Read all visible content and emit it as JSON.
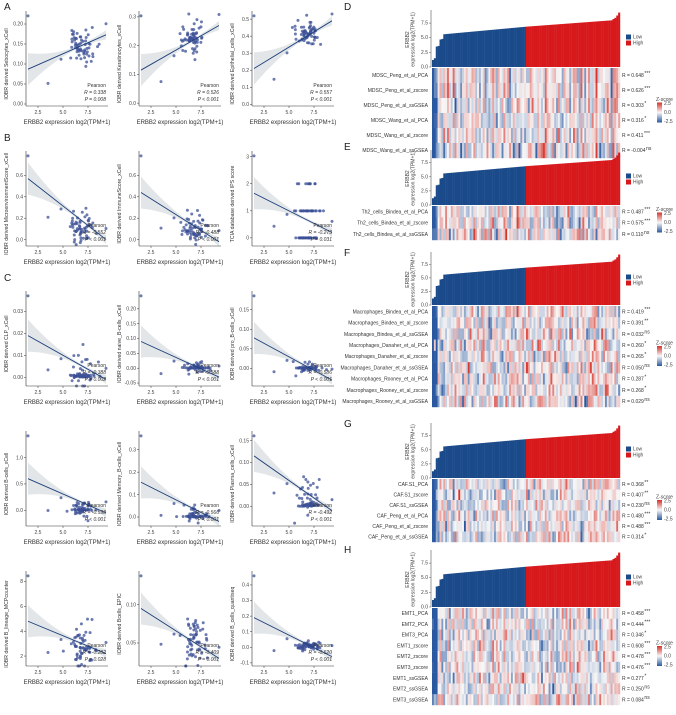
{
  "figure": {
    "panel_letters": [
      "A",
      "B",
      "C",
      "D",
      "E",
      "F",
      "G",
      "H"
    ]
  },
  "colors": {
    "point": "#3b4f96",
    "line": "#1c3f7a",
    "ci": "#d9dde0",
    "low": "#1a4a8a",
    "high": "#d7191c",
    "z_low": "#2a58a0",
    "z_mid": "#f7f7f7",
    "z_high": "#d6322a"
  },
  "chart_data": [
    {
      "panel": "A",
      "type": "scatter",
      "xlabel": "ERBB2 expression log2(TPM+1)",
      "ylabel": "IOBR derived Sebocytes_xCell",
      "xlim": [
        1.3,
        9.5
      ],
      "xticks": [
        "2.5",
        "5.0",
        "7.5"
      ],
      "ylim": [
        -0.005,
        0.225
      ],
      "yticks": [
        "0.00",
        "0.05",
        "0.10",
        "0.15",
        "0.20"
      ],
      "fit": [
        0.087,
        0.173
      ],
      "center": [
        6.8,
        0.145
      ],
      "spread": 0.025,
      "stats": {
        "method": "Pearson",
        "R": "R = 0.338",
        "P": "P = 0.008"
      }
    },
    {
      "panel": "A",
      "type": "scatter",
      "xlabel": "ERBB2 expression log2(TPM+1)",
      "ylabel": "IOBR derived Keratinocytes_xCell",
      "xlim": [
        1.3,
        9.5
      ],
      "xticks": [
        "2.5",
        "5.0",
        "7.5"
      ],
      "ylim": [
        -0.01,
        0.31
      ],
      "yticks": [
        "0.0",
        "0.1",
        "0.2",
        "0.3"
      ],
      "fit": [
        0.115,
        0.27
      ],
      "center": [
        6.8,
        0.23
      ],
      "spread": 0.025,
      "stats": {
        "method": "Pearson",
        "R": "R = 0.526",
        "P": "P < 0.001"
      }
    },
    {
      "panel": "A",
      "type": "scatter",
      "xlabel": "ERBB2 expression log2(TPM+1)",
      "ylabel": "IOBR derived Epithelial_cells_xCell",
      "xlim": [
        1.3,
        9.5
      ],
      "xticks": [
        "2.5",
        "5.0",
        "7.5"
      ],
      "ylim": [
        -0.01,
        0.53
      ],
      "yticks": [
        "0.0",
        "0.1",
        "0.2",
        "0.3",
        "0.4",
        "0.5"
      ],
      "fit": [
        0.21,
        0.49
      ],
      "center": [
        6.9,
        0.41
      ],
      "spread": 0.035,
      "stats": {
        "method": "Pearson",
        "R": "R = 0.557",
        "P": "P < 0.001"
      }
    },
    {
      "panel": "B",
      "type": "scatter",
      "xlabel": "ERBB2 expression log2(TPM+1)",
      "ylabel": "IOBR derived MicroenvironmentScore_xCell",
      "xlim": [
        1.3,
        9.5
      ],
      "xticks": [
        "2.5",
        "5.0",
        "7.5"
      ],
      "ylim": [
        -0.06,
        0.8
      ],
      "yticks": [
        "0.0",
        "0.2",
        "0.4",
        "0.6"
      ],
      "fit": [
        0.57,
        0.0
      ],
      "center": [
        6.8,
        0.12
      ],
      "spread": 0.08,
      "stats": {
        "method": "Pearson",
        "R": "R = -0.552",
        "P": "P < 0.001"
      }
    },
    {
      "panel": "B",
      "type": "scatter",
      "xlabel": "ERBB2 expression log2(TPM+1)",
      "ylabel": "IOBR derived ImmuneScore_xCell",
      "xlim": [
        1.3,
        9.5
      ],
      "xticks": [
        "2.5",
        "5.0",
        "7.5"
      ],
      "ylim": [
        -0.06,
        0.8
      ],
      "yticks": [
        "0.0",
        "0.2",
        "0.4",
        "0.6"
      ],
      "fit": [
        0.44,
        -0.02
      ],
      "center": [
        6.8,
        0.1
      ],
      "spread": 0.07,
      "stats": {
        "method": "Pearson",
        "R": "R = -0.488",
        "P": "P < 0.001"
      }
    },
    {
      "panel": "B",
      "type": "scatter",
      "xlabel": "ERBB2 expression log2(TPM+1)",
      "ylabel": "TCIA database derived IPS score",
      "xlim": [
        1.3,
        9.5
      ],
      "xticks": [
        "2.5",
        "5.0",
        "7.5"
      ],
      "ylim": [
        -0.3,
        3.1
      ],
      "yticks": [
        "0",
        "1",
        "2",
        "3"
      ],
      "fit": [
        1.65,
        0.2
      ],
      "center": [
        6.9,
        0.5
      ],
      "spread": 0.6,
      "discrete": true,
      "stats": {
        "method": "Pearson",
        "R": "R = -0.273",
        "P": "P = 0.031"
      }
    },
    {
      "panel": "C",
      "type": "scatter",
      "xlabel": "ERBB2 expression log2(TPM+1)",
      "ylabel": "IOBR derived CLP_xCell",
      "xlim": [
        1.3,
        9.5
      ],
      "xticks": [
        "2.5",
        "5.0",
        "7.5"
      ],
      "ylim": [
        -0.004,
        0.038
      ],
      "yticks": [
        "0.00",
        "0.01",
        "0.02",
        "0.03"
      ],
      "fit": [
        0.019,
        -0.001
      ],
      "center": [
        6.9,
        0.002
      ],
      "spread": 0.005,
      "floor": 0,
      "stats": {
        "method": "Pearson",
        "R": "R = -0.388",
        "P": "P = 0.002"
      }
    },
    {
      "panel": "C",
      "type": "scatter",
      "xlabel": "ERBB2 expression log2(TPM+1)",
      "ylabel": "IOBR derived naive_B-cells_xCell",
      "xlim": [
        1.3,
        9.5
      ],
      "xticks": [
        "2.5",
        "5.0",
        "7.5"
      ],
      "ylim": [
        -0.06,
        0.25
      ],
      "yticks": [
        "-0.05",
        "0.00",
        "0.05",
        "0.10",
        "0.15",
        "0.20"
      ],
      "fit": [
        0.09,
        -0.03
      ],
      "center": [
        6.9,
        0.003
      ],
      "spread": 0.01,
      "floor": 0,
      "stats": {
        "method": "Pearson",
        "R": "R = -0.588",
        "P": "P < 0.001"
      }
    },
    {
      "panel": "C",
      "type": "scatter",
      "xlabel": "ERBB2 expression log2(TPM+1)",
      "ylabel": "IOBR derived pro_B-cells_xCell",
      "xlim": [
        1.3,
        9.5
      ],
      "xticks": [
        "2.5",
        "5.0",
        "7.5"
      ],
      "ylim": [
        -0.045,
        0.19
      ],
      "yticks": [
        "0.00",
        "0.05",
        "0.10",
        "0.15"
      ],
      "fit": [
        0.078,
        -0.03
      ],
      "center": [
        6.9,
        0.003
      ],
      "spread": 0.008,
      "floor": 0,
      "stats": {
        "method": "Pearson",
        "R": "R = -0.586",
        "P": "P < 0.001"
      }
    },
    {
      "panel": "C",
      "type": "scatter",
      "xlabel": "ERBB2 expression log2(TPM+1)",
      "ylabel": "IOBR derived B-cells_xCell",
      "xlim": [
        1.3,
        9.5
      ],
      "xticks": [
        "2.5",
        "5.0",
        "7.5"
      ],
      "ylim": [
        -0.3,
        1.45
      ],
      "yticks": [
        "0.0",
        "0.5",
        "1.0"
      ],
      "fit": [
        0.6,
        -0.05
      ],
      "center": [
        6.9,
        0.03
      ],
      "spread": 0.07,
      "floor": 0,
      "stats": {
        "method": "Pearson",
        "R": "R = -0.598",
        "P": "P < 0.001"
      }
    },
    {
      "panel": "C",
      "type": "scatter",
      "xlabel": "ERBB2 expression log2(TPM+1)",
      "ylabel": "IOBR derived Memory_B-cells_xCell",
      "xlim": [
        1.3,
        9.5
      ],
      "xticks": [
        "2.5",
        "5.0",
        "7.5"
      ],
      "ylim": [
        -0.04,
        0.37
      ],
      "yticks": [
        "0.0",
        "0.1",
        "0.2",
        "0.3"
      ],
      "fit": [
        0.155,
        -0.02
      ],
      "center": [
        6.9,
        0.01
      ],
      "spread": 0.02,
      "floor": 0,
      "stats": {
        "method": "Pearson",
        "R": "R = -0.566",
        "P": "P < 0.001"
      }
    },
    {
      "panel": "C",
      "type": "scatter",
      "xlabel": "ERBB2 expression log2(TPM+1)",
      "ylabel": "IOBR derived Plasma_cells_xCell",
      "xlim": [
        1.3,
        9.5
      ],
      "xticks": [
        "2.5",
        "5.0",
        "7.5"
      ],
      "ylim": [
        -0.045,
        0.165
      ],
      "yticks": [
        "0.00",
        "0.05",
        "0.10",
        "0.15"
      ],
      "fit": [
        0.115,
        -0.01
      ],
      "center": [
        6.9,
        0.03
      ],
      "spread": 0.03,
      "floor": 0,
      "stats": {
        "method": "Pearson",
        "R": "R = -0.492",
        "P": "P < 0.001"
      }
    },
    {
      "panel": "C",
      "type": "scatter",
      "xlabel": "ERBB2 expression log2(TPM+1)",
      "ylabel": "IOBR derived B_lineage_MCPcounter",
      "xlim": [
        1.3,
        9.5
      ],
      "xticks": [
        "2.5",
        "5.0",
        "7.5"
      ],
      "ylim": [
        1.2,
        8.6
      ],
      "yticks": [
        "2",
        "4",
        "6",
        "8"
      ],
      "fit": [
        4.8,
        2.2
      ],
      "center": [
        6.9,
        3.0
      ],
      "spread": 1.0,
      "stats": {
        "method": "Pearson",
        "R": "R = -0.282",
        "P": "P = 0.028"
      }
    },
    {
      "panel": "C",
      "type": "scatter",
      "xlabel": "ERBB2 expression log2(TPM+1)",
      "ylabel": "IOBR derived Bcells_EPIC",
      "xlim": [
        1.3,
        9.5
      ],
      "xticks": [
        "2.5",
        "5.0",
        "7.5"
      ],
      "ylim": [
        0.02,
        0.14
      ],
      "yticks": [
        "0.05",
        "0.10"
      ],
      "fit": [
        0.095,
        0.03
      ],
      "center": [
        6.9,
        0.05
      ],
      "spread": 0.015,
      "stats": {
        "method": "Pearson",
        "R": "R = -0.409",
        "P": "P = 0.001"
      }
    },
    {
      "panel": "C",
      "type": "scatter",
      "xlabel": "ERBB2 expression log2(TPM+1)",
      "ylabel": "IOBR derived B_cells_quantiseq",
      "xlim": [
        1.3,
        9.5
      ],
      "xticks": [
        "2.5",
        "5.0",
        "7.5"
      ],
      "ylim": [
        -0.12,
        0.47
      ],
      "yticks": [
        "-0.1",
        "0.0",
        "0.1",
        "0.2",
        "0.3",
        "0.4"
      ],
      "fit": [
        0.19,
        -0.06
      ],
      "center": [
        6.9,
        0.01
      ],
      "spread": 0.012,
      "stats": {
        "method": "Pearson",
        "R": "R = -0.620",
        "P": "P < 0.001"
      }
    },
    {
      "panel": "D",
      "type": "heatmap",
      "bar_ylabel": [
        "ERBB2",
        "expression log2(TPM+1)"
      ],
      "bar_yticks": [
        "0.0",
        "2.5",
        "5.0",
        "7.5"
      ],
      "legend": [
        "Low",
        "High"
      ],
      "zscore": {
        "title": "Z-score",
        "ticks": [
          "2.5",
          "0.0",
          "-2.5"
        ]
      },
      "rows": [
        {
          "label": "MDSC_Peng_et_al_PCA",
          "R": "R = 0.648",
          "sig": "***",
          "r": 0.65
        },
        {
          "label": "MDSC_Peng_et_al_zscore",
          "R": "R = 0.626",
          "sig": "***",
          "r": 0.63
        },
        {
          "label": "MDSC_Peng_et_al_ssGSEA",
          "R": "R = 0.303",
          "sig": "*",
          "r": 0.3
        },
        {
          "label": "MDSC_Wang_et_al_PCA",
          "R": "R = 0.316",
          "sig": "*",
          "r": 0.32
        },
        {
          "label": "MDSC_Wang_et_al_zscore",
          "R": "R = 0.411",
          "sig": "***",
          "r": 0.41
        },
        {
          "label": "MDSC_Wang_et_al_ssGSEA",
          "R": "R = -0.004",
          "sig": "ns",
          "r": 0
        }
      ]
    },
    {
      "panel": "E",
      "type": "heatmap",
      "bar_ylabel": [
        "ERBB2",
        "expression log2(TPM+1)"
      ],
      "bar_yticks": [
        "0.0",
        "2.5",
        "5.0",
        "7.5"
      ],
      "legend": [
        "Low",
        "High"
      ],
      "zscore": {
        "title": "Z-score",
        "ticks": [
          "2.5",
          "0.0",
          "-2.5"
        ]
      },
      "rows": [
        {
          "label": "Th2_cells_Bindea_et_al_PCA",
          "R": "R = 0.487",
          "sig": "***",
          "r": 0.49
        },
        {
          "label": "Th2_cells_Bindea_et_al_zscore",
          "R": "R = 0.575",
          "sig": "***",
          "r": 0.58
        },
        {
          "label": "Th2_cells_Bindea_et_al_ssGSEA",
          "R": "R = 0.110",
          "sig": "ns",
          "r": 0.11
        }
      ]
    },
    {
      "panel": "F",
      "type": "heatmap",
      "bar_ylabel": [
        "ERBB2",
        "expression log2(TPM+1)"
      ],
      "bar_yticks": [
        "0.0",
        "2.5",
        "5.0",
        "7.5"
      ],
      "legend": [
        "Low",
        "High"
      ],
      "zscore": {
        "title": "Z-score",
        "ticks": [
          "2.5",
          "0.0",
          "-2.5"
        ]
      },
      "rows": [
        {
          "label": "Macrophages_Bindea_et_al_PCA",
          "R": "R = 0.419",
          "sig": "***",
          "r": 0.42
        },
        {
          "label": "Macrophages_Bindea_et_al_zscore",
          "R": "R = 0.391",
          "sig": "**",
          "r": 0.39
        },
        {
          "label": "Macrophages_Bindea_et_al_ssGSEA",
          "R": "R = 0.032",
          "sig": "ns",
          "r": 0.03
        },
        {
          "label": "Macrophages_Danaher_et_al_PCA",
          "R": "R = 0.260",
          "sig": "*",
          "r": 0.26
        },
        {
          "label": "Macrophages_Danaher_et_al_zscore",
          "R": "R = 0.265",
          "sig": "*",
          "r": 0.27
        },
        {
          "label": "Macrophages_Danaher_et_al_ssGSEA",
          "R": "R = 0.050",
          "sig": "ns",
          "r": 0.05
        },
        {
          "label": "Macrophages_Rooney_et_al_PCA",
          "R": "R = 0.287",
          "sig": "*",
          "r": 0.29
        },
        {
          "label": "Macrophages_Rooney_et_al_zscore",
          "R": "R = 0.268",
          "sig": "*",
          "r": 0.27
        },
        {
          "label": "Macrophages_Rooney_et_al_ssGSEA",
          "R": "R = 0.029",
          "sig": "ns",
          "r": 0.03
        }
      ]
    },
    {
      "panel": "G",
      "type": "heatmap",
      "bar_ylabel": [
        "ERBB2",
        "expression log2(TPM+1)"
      ],
      "bar_yticks": [
        "0.0",
        "2.5",
        "5.0",
        "7.5"
      ],
      "legend": [
        "Low",
        "High"
      ],
      "zscore": {
        "title": "Z-score",
        "ticks": [
          "2.5",
          "0.0",
          "-2.5"
        ]
      },
      "rows": [
        {
          "label": "CAF.S1_PCA",
          "R": "R = 0.368",
          "sig": "**",
          "r": 0.37
        },
        {
          "label": "CAF.S1_zscore",
          "R": "R = 0.407",
          "sig": "**",
          "r": 0.41
        },
        {
          "label": "CAF.S1_ssGSEA",
          "R": "R = 0.230",
          "sig": "ns",
          "r": 0.23
        },
        {
          "label": "CAF_Peng_et_al_PCA",
          "R": "R = 0.480",
          "sig": "***",
          "r": 0.48
        },
        {
          "label": "CAF_Peng_et_al_zscore",
          "R": "R = 0.488",
          "sig": "***",
          "r": 0.49
        },
        {
          "label": "CAF_Peng_et_al_ssGSEA",
          "R": "R = 0.314",
          "sig": "*",
          "r": 0.31
        }
      ]
    },
    {
      "panel": "H",
      "type": "heatmap",
      "bar_ylabel": [
        "ERBB2",
        "expression log2(TPM+1)"
      ],
      "bar_yticks": [
        "0.0",
        "2.5",
        "5.0",
        "7.5"
      ],
      "legend": [
        "Low",
        "High"
      ],
      "zscore": {
        "title": "Z-score",
        "ticks": [
          "2.5",
          "0.0",
          "-2.5"
        ]
      },
      "rows": [
        {
          "label": "EMT1_PCA",
          "R": "R = 0.458",
          "sig": "***",
          "r": 0.46
        },
        {
          "label": "EMT2_PCA",
          "R": "R = 0.444",
          "sig": "***",
          "r": 0.44
        },
        {
          "label": "EMT3_PCA",
          "R": "R = 0.346",
          "sig": "*",
          "r": 0.35
        },
        {
          "label": "EMT1_zscore",
          "R": "R = 0.608",
          "sig": "***",
          "r": 0.61
        },
        {
          "label": "EMT2_zscore",
          "R": "R = 0.478",
          "sig": "***",
          "r": 0.48
        },
        {
          "label": "EMT3_zscore",
          "R": "R = 0.476",
          "sig": "***",
          "r": 0.48
        },
        {
          "label": "EMT1_ssGSEA",
          "R": "R = 0.277",
          "sig": "*",
          "r": 0.28
        },
        {
          "label": "EMT2_ssGSEA",
          "R": "R = 0.250",
          "sig": "ns",
          "r": 0.25
        },
        {
          "label": "EMT3_ssGSEA",
          "R": "R = 0.084",
          "sig": "ns",
          "r": 0.08
        }
      ]
    }
  ]
}
